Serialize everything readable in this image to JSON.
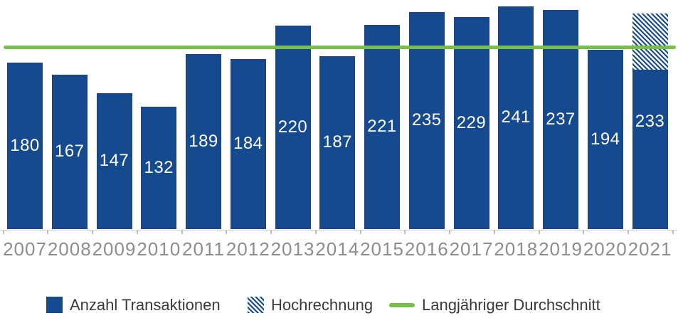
{
  "chart_data": {
    "type": "bar",
    "title": "",
    "xlabel": "",
    "ylabel": "",
    "categories": [
      "2007",
      "2008",
      "2009",
      "2010",
      "2011",
      "2012",
      "2013",
      "2014",
      "2015",
      "2016",
      "2017",
      "2018",
      "2019",
      "2020",
      "2021"
    ],
    "series": [
      {
        "name": "Anzahl Transaktionen",
        "values": [
          180,
          167,
          147,
          132,
          189,
          184,
          220,
          187,
          221,
          235,
          229,
          241,
          237,
          194,
          233
        ]
      }
    ],
    "projection": {
      "name": "Hochrechnung",
      "year": "2021",
      "total": 233,
      "solid_base_estimate": 172
    },
    "average_line": {
      "label": "Langjähriger Durchschnitt",
      "value_estimate": 196
    },
    "ylim": [
      0,
      248
    ],
    "grid": false,
    "legend_position": "bottom",
    "legend": [
      {
        "label": "Anzahl Transaktionen",
        "swatch": "solid"
      },
      {
        "label": "Hochrechnung",
        "swatch": "hatched"
      },
      {
        "label": "Langjähriger Durchschnitt",
        "swatch": "line"
      }
    ],
    "colors": {
      "bar": "#154a8f",
      "bar_border": "#20407f",
      "average_line": "#76bf4b",
      "axis_line": "#d2d2d2",
      "tick": "#c0c0c0",
      "x_axis_label": "#8d8d8d",
      "legend_text": "#3a3a3a",
      "value_label": "#ffffff"
    }
  }
}
